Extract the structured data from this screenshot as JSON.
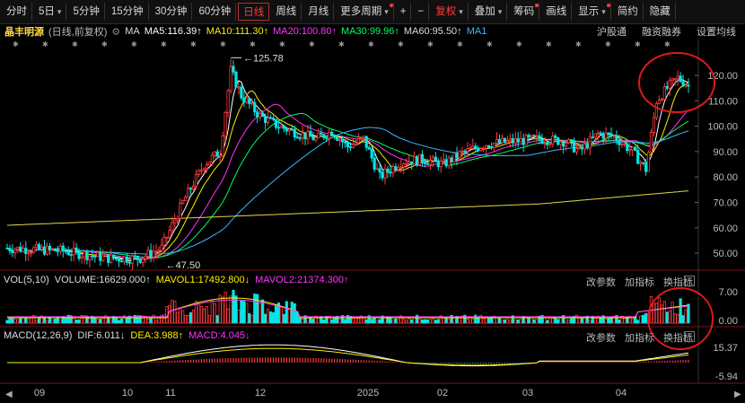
{
  "toolbar": {
    "items": [
      {
        "label": "分时"
      },
      {
        "label": "5日",
        "caret": true
      },
      {
        "label": "5分钟"
      },
      {
        "label": "15分钟"
      },
      {
        "label": "30分钟"
      },
      {
        "label": "60分钟"
      },
      {
        "label": "日线",
        "active": true
      },
      {
        "label": "周线"
      },
      {
        "label": "月线"
      },
      {
        "label": "更多周期",
        "caret": true,
        "dot": true
      },
      {
        "label": "+"
      },
      {
        "label": "−"
      },
      {
        "label": "复权",
        "caret": true,
        "red": true
      },
      {
        "label": "叠加",
        "caret": true
      },
      {
        "label": "筹码",
        "dot": true
      },
      {
        "label": "画线"
      },
      {
        "label": "显示",
        "caret": true,
        "dot": true
      },
      {
        "label": "简约"
      },
      {
        "label": "隐藏"
      }
    ]
  },
  "info": {
    "stock": "晶丰明源",
    "mode": "(日线,前复权)",
    "ma_label": "MA",
    "ma5": "MA5:116.39↑",
    "ma10": "MA10:111.30↑",
    "ma20": "MA20:100.80↑",
    "ma30": "MA30:99.96↑",
    "ma60": "MA60:95.50↑",
    "ma1": "MA1",
    "right": [
      "沪股通",
      "融资融券",
      "设置均线"
    ]
  },
  "price_axis": [
    "120.00",
    "110.00",
    "100.00",
    "90.00",
    "80.00",
    "70.00",
    "60.00",
    "50.00"
  ],
  "annotations": {
    "high": "125.78",
    "low": "47.50"
  },
  "vol": {
    "title": "VOL(5,10)",
    "volume": "VOLUME:16629.000↑",
    "mavol1": "MAVOL1:17492.800↓",
    "mavol2": "MAVOL2:21374.300↑",
    "axis": [
      "7.00",
      "0.00"
    ]
  },
  "macd": {
    "title": "MACD(12,26,9)",
    "dif": "DIF:6.011↓",
    "dea": "DEA:3.988↑",
    "macd": "MACD:4.045↓",
    "axis": [
      "15.37",
      "-5.94"
    ]
  },
  "panel_buttons": {
    "params": "改参数",
    "add": "加指标",
    "swap": "换指标",
    "close": "×"
  },
  "date_axis": [
    "09",
    "10",
    "11",
    "12",
    "2025",
    "02",
    "03",
    "04"
  ],
  "colors": {
    "up": "#ff3b3b",
    "down": "#00e5e5",
    "ma5": "#ffffff",
    "ma10": "#ffee00",
    "ma20": "#ff33ff",
    "ma30": "#00ff66",
    "ma60": "#33bbff"
  }
}
